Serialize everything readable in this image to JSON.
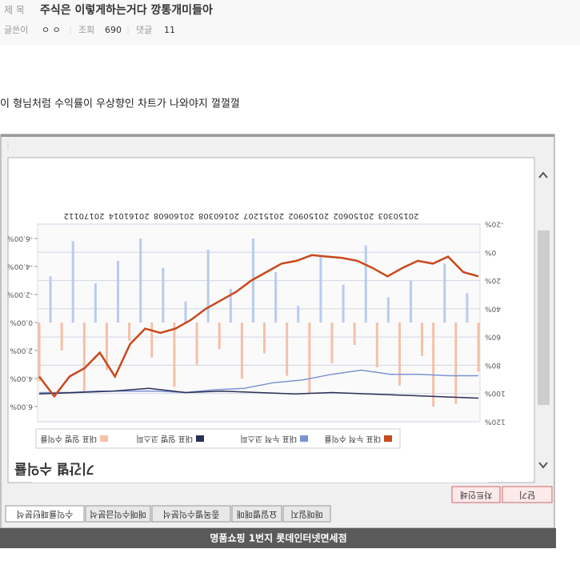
{
  "post": {
    "title_label": "제 목",
    "title": "주식은 이렇게하는거다 깡통개미들아",
    "author_label": "글쓴이",
    "author": "ㅇ ㅇ",
    "views_label": "조회",
    "views": 690,
    "comments_label": "댓글",
    "comments": 11,
    "body": "이 형님처럼 수익률이 우상향인 차트가 나와야지 껄껄껄"
  },
  "window": {
    "buttons": [
      "닫기",
      "차트인쇄"
    ],
    "tabs": [
      "매매일지",
      "요일별매매",
      "종목별수익분석",
      "매매수익금분석",
      "수익률패턴분석"
    ]
  },
  "chart_data": {
    "type": "combo",
    "title": "기간별 수익률",
    "xtick_labels": [
      "20150303",
      "20150602",
      "20150902",
      "20151207",
      "20160308",
      "20160608",
      "20161014",
      "20170112"
    ],
    "ylim": [
      -20,
      120
    ],
    "yticks": [
      {
        "value": -20,
        "label": "-20%"
      },
      {
        "value": 0,
        "label": "0%"
      },
      {
        "value": 20,
        "label": "20%"
      },
      {
        "value": 40,
        "label": "40%"
      },
      {
        "value": 60,
        "label": "60%"
      },
      {
        "value": 80,
        "label": "80%"
      },
      {
        "value": 100,
        "label": "100%"
      },
      {
        "value": 120,
        "label": "120%"
      }
    ],
    "y2lim": [
      -6,
      6
    ],
    "y2ticks": [
      {
        "value": -6,
        "label": "-6.00%"
      },
      {
        "value": -4,
        "label": "-4.00%"
      },
      {
        "value": -2,
        "label": "-2.00%"
      },
      {
        "value": 0,
        "label": "0.00%"
      },
      {
        "value": 2,
        "label": "2.00%"
      },
      {
        "value": 4,
        "label": "4.00%"
      },
      {
        "value": 6,
        "label": "6.00%"
      }
    ],
    "grid": true,
    "series": [
      {
        "name": "대표 누적 수익률",
        "type": "line",
        "color": "#c8491c",
        "values": [
          17,
          14,
          3,
          8,
          6,
          11,
          17,
          11,
          6,
          4,
          3,
          2,
          6,
          8,
          14,
          20,
          28,
          34,
          40,
          48,
          54,
          57,
          54,
          65,
          88,
          71,
          82,
          88,
          102,
          88
        ]
      },
      {
        "name": "대표 누적 코스피",
        "type": "line",
        "axis": "y2",
        "color": "#7b93d4",
        "values": [
          3.8,
          3.8,
          3.7,
          3.7,
          3.4,
          3.7,
          4.1,
          4.3,
          4.7,
          4.8,
          5.0,
          4.9,
          4.9,
          4.9,
          5.0,
          5.0
        ]
      },
      {
        "name": "대표 일별 코스피",
        "type": "line",
        "axis": "y2",
        "color": "#2a2f55",
        "values": [
          5.4,
          5.3,
          5.2,
          5.1,
          5.0,
          5.1,
          5.0,
          4.9,
          5.0,
          4.7,
          4.9,
          5.0,
          5.1
        ]
      },
      {
        "name": "대표 일별 수익률",
        "type": "bar",
        "axis": "y2",
        "color": "#f4c0a8",
        "negative_color": "#b8cbee",
        "values": [
          3.5,
          -2.1,
          5.8,
          -4.2,
          6.0,
          2.4,
          -3.0,
          4.5,
          -1.8,
          3.2,
          -5.5,
          1.6,
          -2.7,
          2.9,
          -4.8,
          5.1,
          -1.2,
          3.8,
          -3.6,
          2.2,
          -6.0,
          4.0,
          -2.4,
          1.9,
          -5.2,
          3.0,
          -1.5,
          4.6,
          -3.9,
          2.5,
          -6.0,
          1.3,
          -4.4,
          3.4,
          -2.8,
          5.0,
          -5.8,
          2.0,
          -3.3,
          4.2
        ]
      }
    ]
  },
  "banner": "명품쇼핑 1번지 롯데인터넷면세점"
}
